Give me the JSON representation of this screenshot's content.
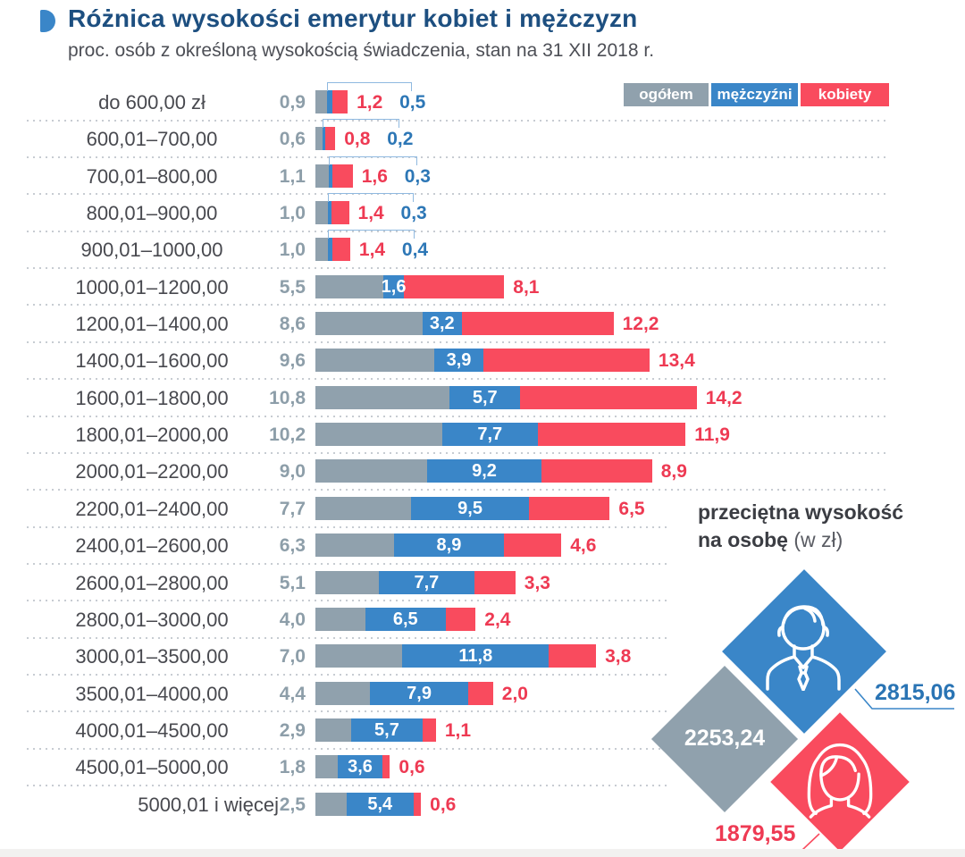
{
  "header": {
    "title": "Różnica wysokości emerytur kobiet i mężczyzn",
    "subtitle": "proc. osób z określoną wysokością świadczenia, stan na 31 XII 2018 r."
  },
  "legend": {
    "items": [
      {
        "label": "ogółem",
        "color": "#90a1ad"
      },
      {
        "label": "mężczyźni",
        "color": "#3a86c8"
      },
      {
        "label": "kobiety",
        "color": "#f94b5e"
      }
    ]
  },
  "chart_data": {
    "type": "bar",
    "orientation": "horizontal-stacked",
    "unit": "proc. osób",
    "title": "Różnica wysokości emerytur kobiet i mężczyzn",
    "categories": [
      "do 600,00 zł",
      "600,01–700,00",
      "700,01–800,00",
      "800,01–900,00",
      "900,01–1000,00",
      "1000,01–1200,00",
      "1200,01–1400,00",
      "1400,01–1600,00",
      "1600,01–1800,00",
      "1800,01–2000,00",
      "2000,01–2200,00",
      "2200,01–2400,00",
      "2400,01–2600,00",
      "2600,01–2800,00",
      "2800,01–3000,00",
      "3000,01–3500,00",
      "3500,01–4000,00",
      "4000,01–4500,00",
      "4500,01–5000,00",
      "5000,01 i więcej"
    ],
    "series": [
      {
        "name": "ogółem",
        "color": "#90a1ad",
        "values": [
          0.9,
          0.6,
          1.1,
          1.0,
          1.0,
          5.5,
          8.6,
          9.6,
          10.8,
          10.2,
          9.0,
          7.7,
          6.3,
          5.1,
          4.0,
          7.0,
          4.4,
          2.9,
          1.8,
          2.5
        ],
        "labels": [
          "0,9",
          "0,6",
          "1,1",
          "1,0",
          "1,0",
          "5,5",
          "8,6",
          "9,6",
          "10,8",
          "10,2",
          "9,0",
          "7,7",
          "6,3",
          "5,1",
          "4,0",
          "7,0",
          "4,4",
          "2,9",
          "1,8",
          "2,5"
        ]
      },
      {
        "name": "mężczyźni",
        "color": "#3a86c8",
        "values": [
          0.5,
          0.2,
          0.3,
          0.3,
          0.4,
          1.6,
          3.2,
          3.9,
          5.7,
          7.7,
          9.2,
          9.5,
          8.9,
          7.7,
          6.5,
          11.8,
          7.9,
          5.7,
          3.6,
          5.4
        ],
        "labels": [
          "0,5",
          "0,2",
          "0,3",
          "0,3",
          "0,4",
          "1,6",
          "3,2",
          "3,9",
          "5,7",
          "7,7",
          "9,2",
          "9,5",
          "8,9",
          "7,7",
          "6,5",
          "11,8",
          "7,9",
          "5,7",
          "3,6",
          "5,4"
        ]
      },
      {
        "name": "kobiety",
        "color": "#f94b5e",
        "values": [
          1.2,
          0.8,
          1.6,
          1.4,
          1.4,
          8.1,
          12.2,
          13.4,
          14.2,
          11.9,
          8.9,
          6.5,
          4.6,
          3.3,
          2.4,
          3.8,
          2.0,
          1.1,
          0.6,
          0.6
        ],
        "labels": [
          "1,2",
          "0,8",
          "1,6",
          "1,4",
          "1,4",
          "8,1",
          "12,2",
          "13,4",
          "14,2",
          "11,9",
          "8,9",
          "6,5",
          "4,6",
          "3,3",
          "2,4",
          "3,8",
          "2,0",
          "1,1",
          "0,6",
          "0,6"
        ]
      }
    ],
    "legend_position": "top-right",
    "grid": "dotted-row-separators"
  },
  "averages": {
    "title_line1": "przeciętna wysokość",
    "title_line2_bold": "na osobę",
    "title_line2_unit": " (w zł)",
    "total": "2253,24",
    "men": "2815,06",
    "women": "1879,55"
  }
}
